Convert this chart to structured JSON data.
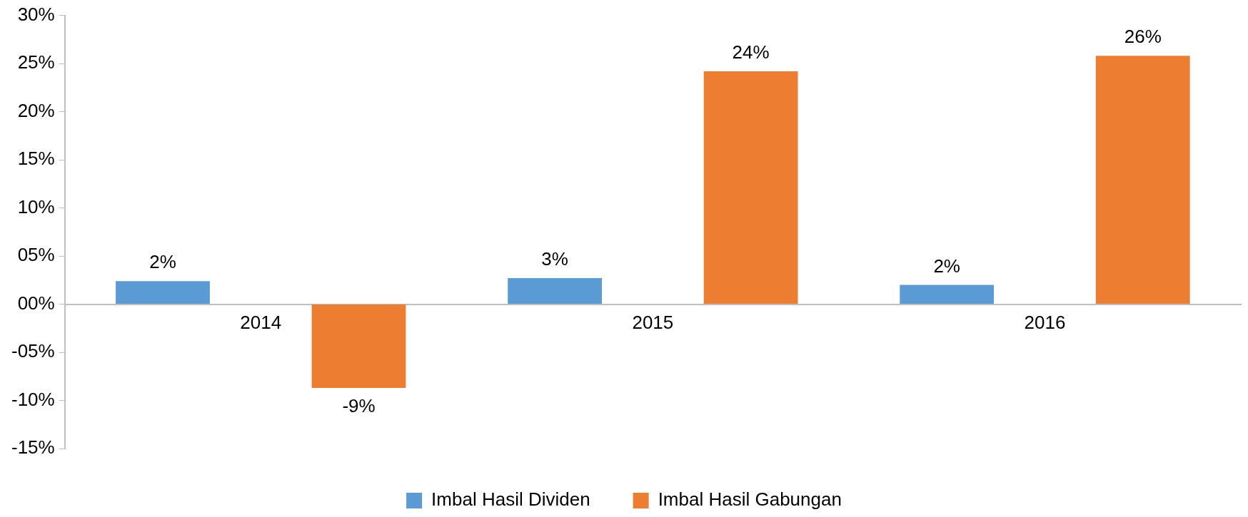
{
  "chart_data": {
    "type": "bar",
    "categories": [
      "2014",
      "2015",
      "2016"
    ],
    "series": [
      {
        "name": "Imbal Hasil Dividen",
        "color": "#5b9bd5",
        "values": [
          2.4,
          2.7,
          2.0
        ],
        "value_labels": [
          "2%",
          "3%",
          "2%"
        ]
      },
      {
        "name": "Imbal Hasil Gabungan",
        "color": "#ed7d31",
        "values": [
          -8.7,
          24.2,
          25.8
        ],
        "value_labels": [
          "-9%",
          "24%",
          "26%"
        ]
      }
    ],
    "ylim": [
      -15,
      30
    ],
    "yticks": [
      {
        "value": -15,
        "label": "-15%"
      },
      {
        "value": -10,
        "label": "-10%"
      },
      {
        "value": -5,
        "label": "-05%"
      },
      {
        "value": 0,
        "label": "00%"
      },
      {
        "value": 5,
        "label": "05%"
      },
      {
        "value": 10,
        "label": "10%"
      },
      {
        "value": 15,
        "label": "15%"
      },
      {
        "value": 20,
        "label": "20%"
      },
      {
        "value": 25,
        "label": "25%"
      },
      {
        "value": 30,
        "label": "30%"
      }
    ],
    "legend": "bottom"
  }
}
